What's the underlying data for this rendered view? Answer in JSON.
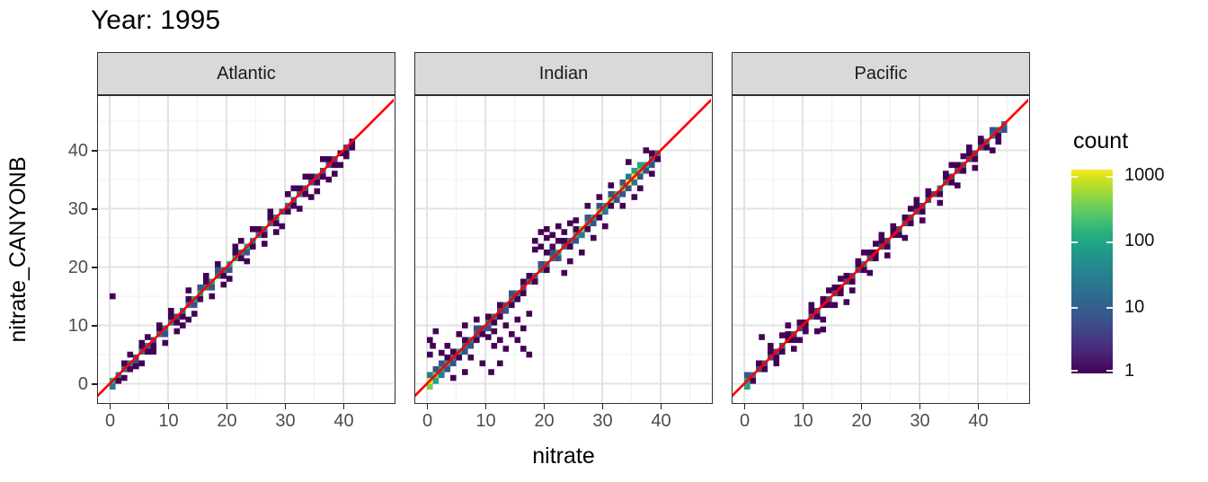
{
  "title": "Year: 1995",
  "x_label": "nitrate",
  "y_label": "nitrate_CANYONB",
  "legend": {
    "title": "count",
    "tick_labels": [
      "1000",
      "100",
      "10",
      "1"
    ],
    "scale": "log10",
    "gradient": "viridis",
    "color_low": "#440154",
    "color_high": "#fde725"
  },
  "chart_data": {
    "type": "heatmap",
    "subtype": "geom_bin2d",
    "title": "Year: 1995",
    "xlabel": "nitrate",
    "ylabel": "nitrate_CANYONB",
    "facets": [
      "Atlantic",
      "Indian",
      "Pacific"
    ],
    "x_ticks": [
      0,
      10,
      20,
      30,
      40
    ],
    "y_ticks": [
      0,
      10,
      20,
      30,
      40
    ],
    "minor_ticks": [
      5,
      15,
      25,
      35,
      45
    ],
    "xlim": [
      -2.2,
      48.9
    ],
    "ylim": [
      -3.4,
      49.5
    ],
    "binwidth": 1,
    "grid": "major and minor, light grey on white",
    "legend_position": "right",
    "reference_line": {
      "equation": "y = x",
      "color": "#ff0000"
    },
    "level_counts": [
      2,
      8,
      30,
      120,
      400,
      1000
    ],
    "level_colors": [
      "#440154",
      "#3b528b",
      "#2a788e",
      "#21a585",
      "#73d055",
      "#fde725"
    ],
    "panels": [
      {
        "name": "Atlantic",
        "diag_start": 0,
        "diag_levels": [
          4,
          3,
          3,
          3,
          2,
          3,
          3,
          2,
          3,
          3,
          3,
          2,
          3,
          3,
          4,
          4,
          3,
          4,
          3,
          3,
          4,
          4,
          3,
          4,
          3,
          3,
          3,
          3,
          3,
          2,
          3,
          2,
          3,
          2,
          2,
          2,
          2,
          2,
          2,
          1,
          2,
          1
        ],
        "sub": [
          [
            1,
            1
          ],
          [
            3,
            1
          ],
          [
            4,
            2
          ],
          [
            6,
            1
          ],
          [
            7,
            1
          ],
          [
            9,
            2
          ],
          [
            11,
            1
          ],
          [
            12,
            1
          ],
          [
            14,
            2
          ],
          [
            15,
            1
          ],
          [
            17,
            2
          ],
          [
            19,
            1
          ],
          [
            20,
            2
          ],
          [
            22,
            1
          ],
          [
            24,
            1
          ],
          [
            26,
            1
          ],
          [
            28,
            1
          ],
          [
            30,
            1
          ],
          [
            31,
            1
          ],
          [
            33,
            1
          ],
          [
            35,
            1
          ],
          [
            36,
            1
          ],
          [
            38,
            1
          ],
          [
            40,
            1
          ],
          [
            41,
            1
          ]
        ],
        "sup": [
          [
            2,
            1
          ],
          [
            5,
            1
          ],
          [
            8,
            1
          ],
          [
            10,
            1
          ],
          [
            13,
            1
          ],
          [
            16,
            1
          ],
          [
            18,
            2
          ],
          [
            21,
            1
          ],
          [
            25,
            1
          ],
          [
            27,
            1
          ],
          [
            32,
            1
          ],
          [
            34,
            1
          ],
          [
            37,
            1
          ]
        ],
        "scatter": [
          [
            0,
            14.5
          ],
          [
            4,
            2.5
          ],
          [
            5,
            3
          ],
          [
            3,
            4.5
          ],
          [
            6,
            7.5
          ],
          [
            7,
            5
          ],
          [
            8,
            9.5
          ],
          [
            9,
            6.5
          ],
          [
            5,
            6.5
          ],
          [
            2,
            0.5
          ],
          [
            11,
            8.5
          ],
          [
            12,
            9.5
          ],
          [
            13,
            15.5
          ],
          [
            14,
            11.5
          ],
          [
            13,
            10.5
          ],
          [
            10,
            12
          ],
          [
            16,
            18
          ],
          [
            17,
            14.5
          ],
          [
            18,
            20
          ],
          [
            19,
            16.5
          ],
          [
            20,
            17.5
          ],
          [
            21,
            23
          ],
          [
            22,
            24
          ],
          [
            23,
            20.5
          ],
          [
            24,
            26
          ],
          [
            26,
            23.5
          ],
          [
            27,
            29
          ],
          [
            28,
            25.5
          ],
          [
            29,
            26.5
          ],
          [
            30,
            32
          ],
          [
            31,
            33
          ],
          [
            32,
            29.5
          ],
          [
            33,
            35
          ],
          [
            34,
            31.5
          ],
          [
            35,
            32.5
          ],
          [
            36,
            38
          ],
          [
            37,
            34.5
          ],
          [
            38,
            35.5
          ],
          [
            39,
            37
          ],
          [
            40,
            38.5
          ]
        ],
        "extra": [
          [
            0,
            -1,
            3
          ],
          [
            15,
            16,
            2
          ],
          [
            23,
            22,
            2
          ]
        ]
      },
      {
        "name": "Indian",
        "diag_start": 0,
        "diag_levels": [
          6,
          5,
          4,
          4,
          3,
          4,
          3,
          3,
          3,
          2,
          3,
          3,
          2,
          3,
          3,
          3,
          2,
          3,
          3,
          3,
          3,
          3,
          4,
          3,
          3,
          4,
          5,
          4,
          4,
          5,
          4,
          5,
          4,
          5,
          6,
          6,
          5,
          4,
          3,
          3
        ],
        "sub": [
          [
            1,
            2
          ],
          [
            2,
            3
          ],
          [
            3,
            2
          ],
          [
            4,
            2
          ],
          [
            5,
            1
          ],
          [
            6,
            2
          ],
          [
            7,
            2
          ],
          [
            8,
            1
          ],
          [
            9,
            1
          ],
          [
            10,
            2
          ],
          [
            11,
            1
          ],
          [
            12,
            1
          ],
          [
            13,
            2
          ],
          [
            14,
            1
          ],
          [
            15,
            1
          ],
          [
            16,
            1
          ],
          [
            18,
            1
          ],
          [
            20,
            1
          ],
          [
            22,
            2
          ],
          [
            24,
            1
          ],
          [
            25,
            2
          ],
          [
            26,
            2
          ],
          [
            27,
            1
          ],
          [
            28,
            2
          ],
          [
            29,
            1
          ],
          [
            30,
            2
          ],
          [
            31,
            1
          ],
          [
            32,
            2
          ],
          [
            33,
            2
          ],
          [
            34,
            2
          ],
          [
            35,
            3
          ],
          [
            36,
            2
          ],
          [
            37,
            2
          ],
          [
            38,
            2
          ],
          [
            39,
            1
          ]
        ],
        "sup": [
          [
            0,
            3
          ],
          [
            1,
            2
          ],
          [
            2,
            2
          ],
          [
            3,
            1
          ],
          [
            4,
            1
          ],
          [
            6,
            1
          ],
          [
            8,
            2
          ],
          [
            10,
            1
          ],
          [
            12,
            1
          ],
          [
            14,
            2
          ],
          [
            16,
            1
          ],
          [
            17,
            1
          ],
          [
            19,
            2
          ],
          [
            21,
            2
          ],
          [
            23,
            1
          ],
          [
            25,
            1
          ],
          [
            27,
            2
          ],
          [
            29,
            2
          ],
          [
            31,
            2
          ],
          [
            33,
            2
          ],
          [
            34,
            3
          ],
          [
            36,
            2
          ],
          [
            38,
            1
          ]
        ],
        "scatter": [
          [
            18,
            22.5
          ],
          [
            18,
            24
          ],
          [
            19,
            23
          ],
          [
            19,
            25.5
          ],
          [
            20,
            22
          ],
          [
            20,
            24.5
          ],
          [
            20,
            26
          ],
          [
            21,
            23
          ],
          [
            21,
            25
          ],
          [
            22,
            24
          ],
          [
            22,
            26.5
          ],
          [
            23,
            25.5
          ],
          [
            10,
            7.5
          ],
          [
            11,
            6
          ],
          [
            11,
            8.5
          ],
          [
            12,
            7
          ],
          [
            13,
            9.5
          ],
          [
            13,
            5.5
          ],
          [
            14,
            8
          ],
          [
            15,
            10.5
          ],
          [
            15,
            7
          ],
          [
            16,
            9
          ],
          [
            17,
            11.5
          ],
          [
            12,
            3
          ],
          [
            16,
            5.5
          ],
          [
            17,
            4.5
          ],
          [
            10.5,
            1.5
          ],
          [
            0,
            4.5
          ],
          [
            0,
            7
          ],
          [
            1,
            8.5
          ],
          [
            0.5,
            6
          ],
          [
            4,
            0.5
          ],
          [
            6,
            1.5
          ],
          [
            2,
            4.8
          ],
          [
            3,
            6
          ],
          [
            5,
            8
          ],
          [
            6,
            9.5
          ],
          [
            7,
            4
          ],
          [
            8,
            10.5
          ],
          [
            9,
            3
          ],
          [
            24,
            20.5
          ],
          [
            25,
            27.5
          ],
          [
            26,
            22
          ],
          [
            27,
            30
          ],
          [
            28,
            24.5
          ],
          [
            29,
            31.5
          ],
          [
            30,
            26.5
          ],
          [
            31,
            33.5
          ],
          [
            24,
            27
          ],
          [
            23,
            18.5
          ],
          [
            33,
            30
          ],
          [
            34,
            37.5
          ],
          [
            36,
            33
          ],
          [
            37,
            39.5
          ],
          [
            38,
            35.5
          ],
          [
            35,
            31.5
          ]
        ],
        "extra": [
          [
            0,
            -1,
            5
          ],
          [
            1,
            0,
            4
          ],
          [
            35,
            36,
            4
          ],
          [
            36,
            37,
            4
          ],
          [
            26,
            25,
            3
          ],
          [
            30,
            29,
            3
          ]
        ]
      },
      {
        "name": "Pacific",
        "diag_start": 0,
        "diag_levels": [
          4,
          3,
          2,
          2,
          2,
          2,
          2,
          1,
          2,
          2,
          1,
          2,
          2,
          1,
          2,
          2,
          1,
          2,
          2,
          2,
          3,
          2,
          1,
          2,
          2,
          1,
          2,
          2,
          2,
          2,
          2,
          2,
          2,
          3,
          3,
          2,
          2,
          2,
          2,
          2,
          2,
          3,
          3,
          3,
          3
        ],
        "sub": [
          [
            1,
            1
          ],
          [
            3,
            1
          ],
          [
            5,
            1
          ],
          [
            6,
            1
          ],
          [
            8,
            1
          ],
          [
            10,
            1
          ],
          [
            12,
            1
          ],
          [
            14,
            1
          ],
          [
            16,
            1
          ],
          [
            18,
            1
          ],
          [
            20,
            1
          ],
          [
            22,
            1
          ],
          [
            24,
            1
          ],
          [
            26,
            1
          ],
          [
            28,
            1
          ],
          [
            30,
            1
          ],
          [
            33,
            1
          ],
          [
            35,
            1
          ],
          [
            37,
            1
          ],
          [
            39,
            1
          ],
          [
            41,
            1
          ],
          [
            43,
            1
          ],
          [
            44,
            2
          ]
        ],
        "sup": [
          [
            0,
            2
          ],
          [
            2,
            1
          ],
          [
            4,
            1
          ],
          [
            7,
            1
          ],
          [
            9,
            1
          ],
          [
            11,
            1
          ],
          [
            13,
            1
          ],
          [
            15,
            1
          ],
          [
            17,
            1
          ],
          [
            19,
            1
          ],
          [
            21,
            1
          ],
          [
            23,
            1
          ],
          [
            25,
            1
          ],
          [
            27,
            1
          ],
          [
            29,
            1
          ],
          [
            31,
            1
          ],
          [
            34,
            1
          ],
          [
            36,
            1
          ],
          [
            38,
            1
          ],
          [
            40,
            1
          ],
          [
            42,
            2
          ]
        ],
        "scatter": [
          [
            2.5,
            7.5
          ],
          [
            9,
            7
          ],
          [
            10,
            8.5
          ],
          [
            12,
            8.5
          ],
          [
            13,
            10.5
          ],
          [
            11,
            13
          ],
          [
            14,
            15.5
          ],
          [
            15,
            13
          ],
          [
            16,
            17.5
          ],
          [
            18,
            15.5
          ],
          [
            19,
            20.5
          ],
          [
            21,
            18.5
          ],
          [
            22,
            23.5
          ],
          [
            24,
            21.5
          ],
          [
            25,
            26.5
          ],
          [
            27,
            24.5
          ],
          [
            28,
            29.5
          ],
          [
            30,
            27.5
          ],
          [
            31,
            32.5
          ],
          [
            33,
            30.5
          ],
          [
            34,
            35.5
          ],
          [
            36,
            33.5
          ],
          [
            37,
            38.5
          ],
          [
            39,
            36.5
          ],
          [
            40,
            41.5
          ],
          [
            42,
            39.5
          ],
          [
            5,
            3
          ],
          [
            6,
            7.8
          ],
          [
            8,
            5.5
          ],
          [
            17,
            13.5
          ],
          [
            4,
            6
          ],
          [
            7,
            9.5
          ],
          [
            13,
            8.8
          ],
          [
            20,
            22
          ],
          [
            23,
            25
          ],
          [
            29,
            31
          ],
          [
            35,
            37
          ],
          [
            38,
            40
          ],
          [
            43,
            41
          ]
        ],
        "extra": [
          [
            0,
            -1,
            4
          ]
        ]
      }
    ]
  }
}
